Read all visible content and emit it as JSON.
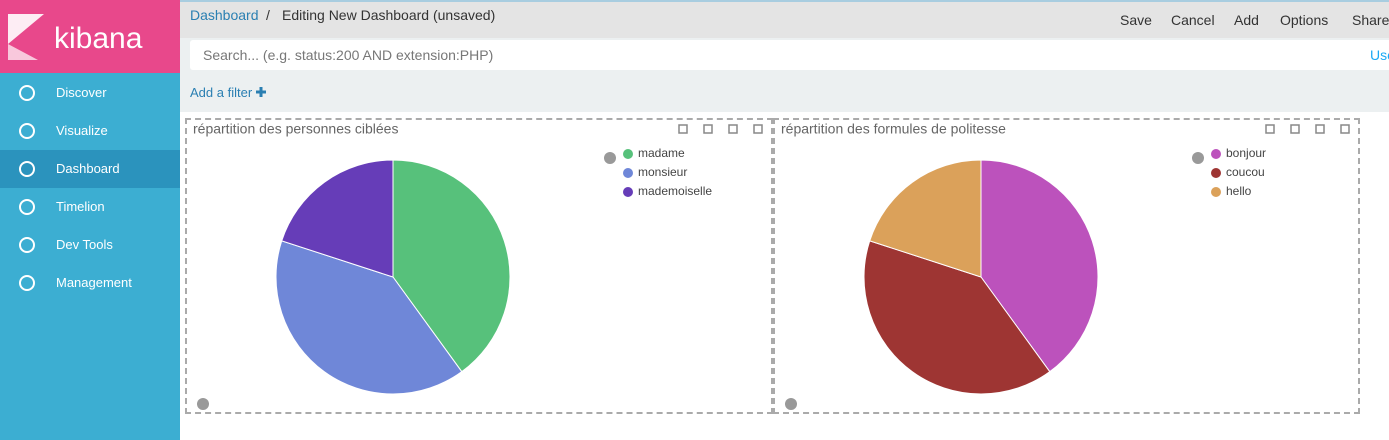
{
  "logo": "kibana",
  "nav": [
    "Discover",
    "Visualize",
    "Dashboard",
    "Timelion",
    "Dev Tools",
    "Management"
  ],
  "breadcrumb": {
    "parent": "Dashboard",
    "separator": "/",
    "current": "Editing New Dashboard (unsaved)"
  },
  "actions": [
    "Save",
    "Cancel",
    "Add",
    "Options",
    "Share"
  ],
  "search": {
    "placeholder": "Search... (e.g. status:200 AND extension:PHP)",
    "link": "Use"
  },
  "filter": "Add a filter",
  "chart_data": [
    {
      "type": "pie",
      "title": "répartition des personnes ciblées",
      "categories": [
        "madame",
        "monsieur",
        "mademoiselle"
      ],
      "values": [
        40,
        40,
        20
      ],
      "colors": [
        "#57c17b",
        "#6f87d8",
        "#663db8"
      ]
    },
    {
      "type": "pie",
      "title": "répartition des formules de politesse",
      "categories": [
        "bonjour",
        "coucou",
        "hello"
      ],
      "values": [
        40,
        40,
        20
      ],
      "colors": [
        "#bc52bc",
        "#9e3533",
        "#dba15a"
      ]
    }
  ]
}
